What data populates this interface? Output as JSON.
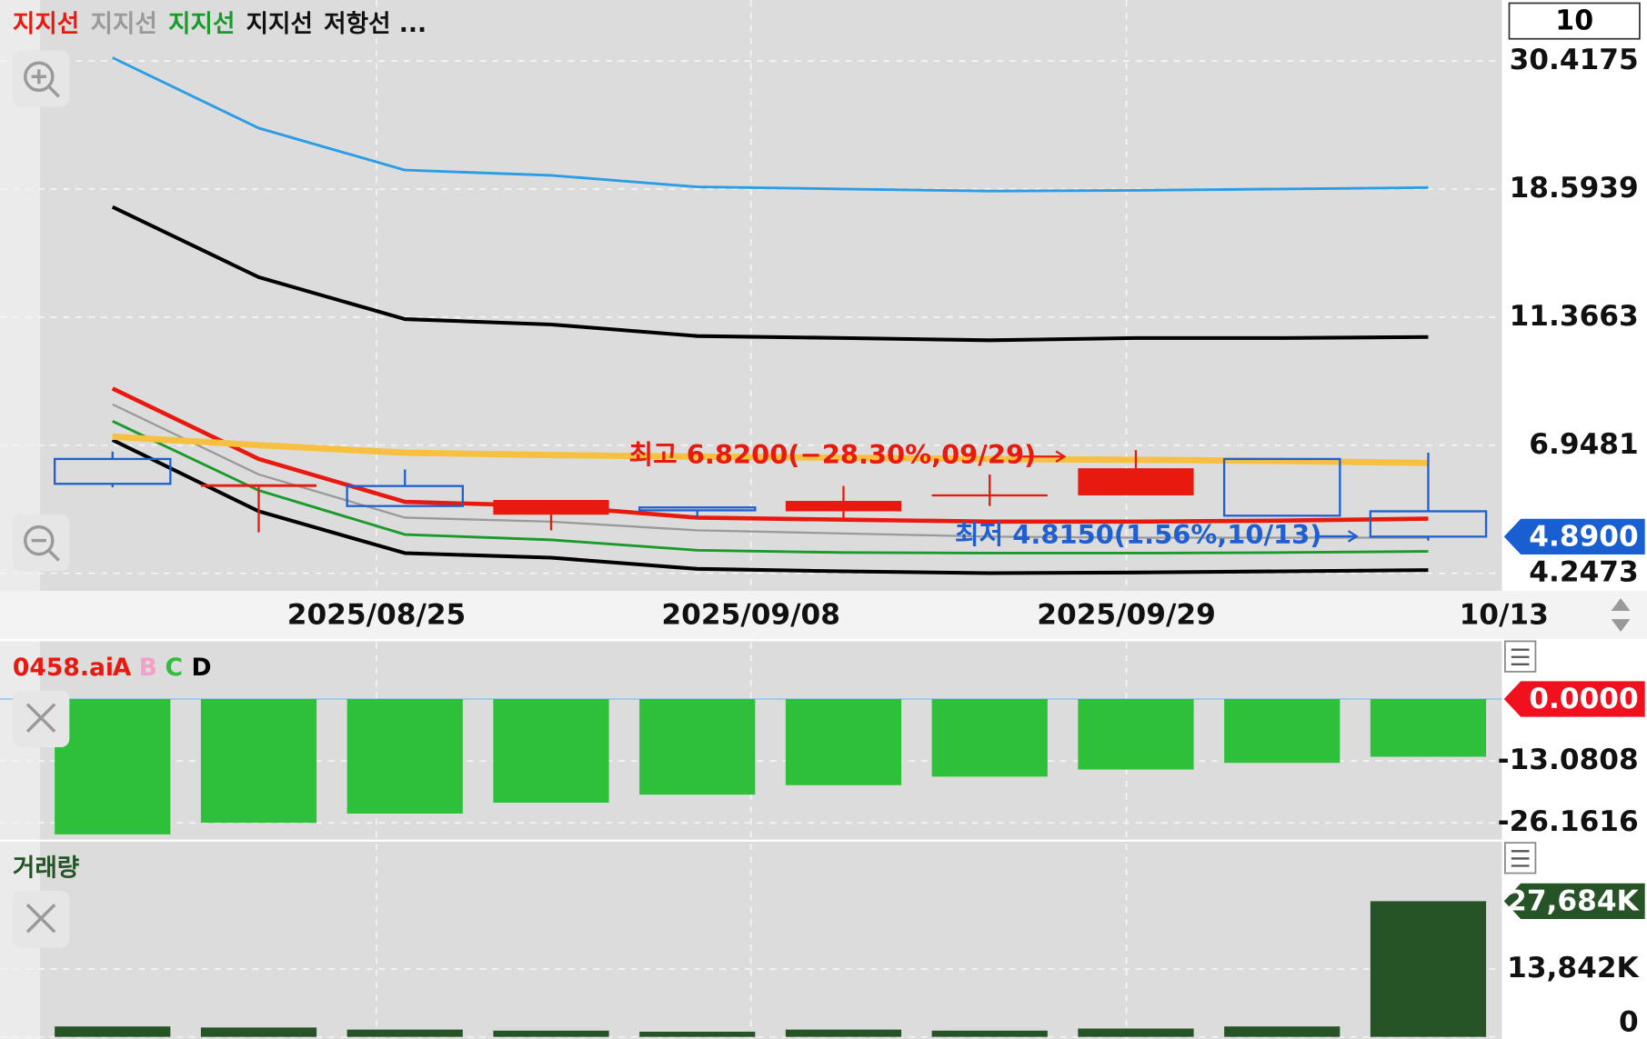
{
  "chart_data": [
    {
      "type": "candlestick",
      "period_label": "10",
      "log_scale": true,
      "grid": true,
      "ylim": [
        3.97,
        38.45
      ],
      "yticks": [
        4.2473,
        6.9481,
        11.3663,
        18.5939,
        30.4175
      ],
      "x_labels": [
        "2025/08/25",
        "2025/09/08",
        "2025/09/29",
        "10/13"
      ],
      "open": [
        6.59,
        5.92,
        5.94,
        5.32,
        5.47,
        5.39,
        5.73,
        5.73,
        6.59,
        5.39
      ],
      "high": [
        6.78,
        5.98,
        6.33,
        5.63,
        5.47,
        5.94,
        6.21,
        6.82,
        6.62,
        6.75
      ],
      "low": [
        5.91,
        4.97,
        5.5,
        5.01,
        5.26,
        5.2,
        5.5,
        5.73,
        5.3,
        4.815
      ],
      "close": [
        5.99,
        5.98,
        5.5,
        5.63,
        5.41,
        5.61,
        5.73,
        6.36,
        5.3,
        4.89
      ],
      "up_color": "#e8190f",
      "down_color": "#1f5fd0",
      "series": [
        {
          "name": "지지선",
          "color": "#e8190f",
          "width": 4,
          "values": [
            8.64,
            6.59,
            5.59,
            5.5,
            5.26,
            5.22,
            5.18,
            5.18,
            5.2,
            5.24
          ]
        },
        {
          "name": "지지선",
          "color": "#9a9a9a",
          "width": 2,
          "values": [
            8.13,
            6.21,
            5.26,
            5.18,
            5.01,
            4.95,
            4.89,
            4.87,
            4.87,
            4.87
          ]
        },
        {
          "name": "지지선",
          "color": "#1a9a2a",
          "width": 2.5,
          "values": [
            7.62,
            5.84,
            4.93,
            4.83,
            4.64,
            4.6,
            4.59,
            4.59,
            4.6,
            4.62
          ]
        },
        {
          "name": "지지선",
          "color": "#000000",
          "width": 3.5,
          "values": [
            7.09,
            5.39,
            4.59,
            4.51,
            4.32,
            4.28,
            4.25,
            4.26,
            4.28,
            4.3
          ]
        },
        {
          "name": "저항선 ...",
          "color": "#000000",
          "width": 3.5,
          "values": [
            17.36,
            13.25,
            11.28,
            11.05,
            10.57,
            10.49,
            10.4,
            10.49,
            10.49,
            10.53
          ]
        },
        {
          "color": "#2a9de6",
          "width": 2.5,
          "values": [
            30.8,
            23.5,
            20.0,
            19.6,
            18.75,
            18.6,
            18.45,
            18.5,
            18.6,
            18.7
          ]
        },
        {
          "color": "#f8c040",
          "width": 6,
          "values": [
            7.18,
            6.95,
            6.75,
            6.69,
            6.65,
            6.62,
            6.59,
            6.57,
            6.54,
            6.49
          ]
        }
      ],
      "annotations": [
        {
          "text": "최고 6.8200(−28.30%,09/29)",
          "color": "#e8190f"
        },
        {
          "text": "최저 4.8150(1.56%,10/13)",
          "color": "#1f5fd0"
        }
      ],
      "current_value": {
        "value": 4.89,
        "label": "4.8900"
      },
      "current_color": "#1a5fd1"
    },
    {
      "type": "bar",
      "title": "0458.ai",
      "title_color": "#e8190f",
      "legend": [
        "A",
        "B",
        "C",
        "D"
      ],
      "legend_colors": [
        "#e8190f",
        "#f5a0c8",
        "#2ec03a",
        "#000000"
      ],
      "ylim": [
        -29.7,
        12.2
      ],
      "yticks": [
        -26.1616,
        -13.0808
      ],
      "values": [
        -28.6,
        -26.16,
        -24.2,
        -21.9,
        -20.2,
        -18.2,
        -16.4,
        -14.9,
        -13.5,
        -12.2
      ],
      "color": "#2ec03a",
      "current_value": {
        "value": 0,
        "label": "0.0000"
      },
      "current_color": "#f0101e"
    },
    {
      "type": "bar",
      "title": "거래량",
      "title_color": "#265426",
      "ylim": [
        0,
        39820
      ],
      "yticks": [
        0,
        {
          "value": 13842,
          "label": "13,842K"
        }
      ],
      "values": [
        2130,
        1917,
        1491,
        1278,
        1065,
        1491,
        1278,
        1704,
        2130,
        27684
      ],
      "color": "#265426",
      "current_value": {
        "value": 27684,
        "label": "27,684K"
      },
      "current_color": "#265426"
    }
  ]
}
